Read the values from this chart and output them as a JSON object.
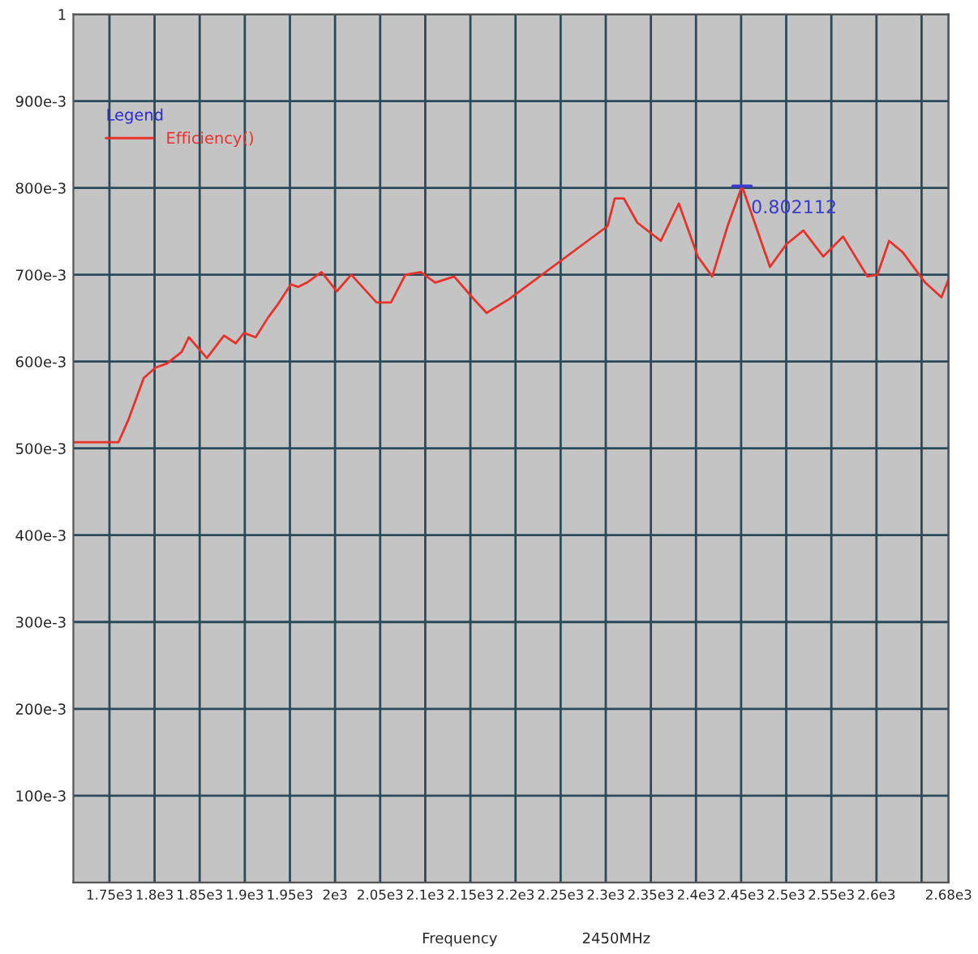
{
  "chart_data": {
    "type": "line",
    "xlabel": "Frequency",
    "legend_title": "Legend",
    "legend": "top left",
    "grid": true,
    "marker": "none",
    "line_style": "solid",
    "xlim": [
      1710,
      2680
    ],
    "ylim": [
      0,
      1
    ],
    "xticks": [
      {
        "value": 1750,
        "label": "1.75e3"
      },
      {
        "value": 1800,
        "label": "1.8e3"
      },
      {
        "value": 1850,
        "label": "1.85e3"
      },
      {
        "value": 1900,
        "label": "1.9e3"
      },
      {
        "value": 1950,
        "label": "1.95e3"
      },
      {
        "value": 2000,
        "label": "2e3"
      },
      {
        "value": 2050,
        "label": "2.05e3"
      },
      {
        "value": 2100,
        "label": "2.1e3"
      },
      {
        "value": 2150,
        "label": "2.15e3"
      },
      {
        "value": 2200,
        "label": "2.2e3"
      },
      {
        "value": 2250,
        "label": "2.25e3"
      },
      {
        "value": 2300,
        "label": "2.3e3"
      },
      {
        "value": 2350,
        "label": "2.35e3"
      },
      {
        "value": 2400,
        "label": "2.4e3"
      },
      {
        "value": 2450,
        "label": "2.45e3"
      },
      {
        "value": 2500,
        "label": "2.5e3"
      },
      {
        "value": 2550,
        "label": "2.55e3"
      },
      {
        "value": 2600,
        "label": "2.6e3"
      },
      {
        "value": 2650,
        "label": null
      },
      {
        "value": 2680,
        "label": "2.68e3"
      }
    ],
    "yticks": [
      {
        "value": 0.1,
        "label": "100e-3"
      },
      {
        "value": 0.2,
        "label": "200e-3"
      },
      {
        "value": 0.3,
        "label": "300e-3"
      },
      {
        "value": 0.4,
        "label": "400e-3"
      },
      {
        "value": 0.5,
        "label": "500e-3"
      },
      {
        "value": 0.6,
        "label": "600e-3"
      },
      {
        "value": 0.7,
        "label": "700e-3"
      },
      {
        "value": 0.8,
        "label": "800e-3"
      },
      {
        "value": 0.9,
        "label": "900e-3"
      },
      1
    ],
    "annotations": [
      {
        "text": "0.802112",
        "x": 2451,
        "y": 0.802
      },
      "2450MHz"
    ],
    "series": [
      {
        "name": "Efficiency()",
        "color": "#e8312a",
        "x": [
          1711,
          1760,
          1771,
          1788,
          1801,
          1814,
          1830,
          1838,
          1858,
          1877,
          1890,
          1899,
          1912,
          1926,
          1936,
          1951,
          1959,
          1969,
          1985,
          2002,
          2018,
          2046,
          2062,
          2078,
          2095,
          2111,
          2132,
          2152,
          2168,
          2193,
          2302,
          2310,
          2320,
          2335,
          2361,
          2381,
          2402,
          2418,
          2435,
          2451,
          2482,
          2500,
          2519,
          2541,
          2563,
          2590,
          2601,
          2614,
          2629,
          2654,
          2672,
          2680
        ],
        "values": [
          0.507,
          0.507,
          0.533,
          0.581,
          0.593,
          0.598,
          0.611,
          0.628,
          0.604,
          0.63,
          0.621,
          0.633,
          0.628,
          0.651,
          0.665,
          0.689,
          0.686,
          0.691,
          0.703,
          0.681,
          0.7,
          0.668,
          0.668,
          0.7,
          0.703,
          0.691,
          0.698,
          0.674,
          0.656,
          0.672,
          0.756,
          0.788,
          0.788,
          0.76,
          0.739,
          0.782,
          0.721,
          0.698,
          0.756,
          0.802,
          0.709,
          0.735,
          0.751,
          0.721,
          0.744,
          0.698,
          0.7,
          0.739,
          0.726,
          0.691,
          0.674,
          0.695
        ]
      }
    ]
  }
}
